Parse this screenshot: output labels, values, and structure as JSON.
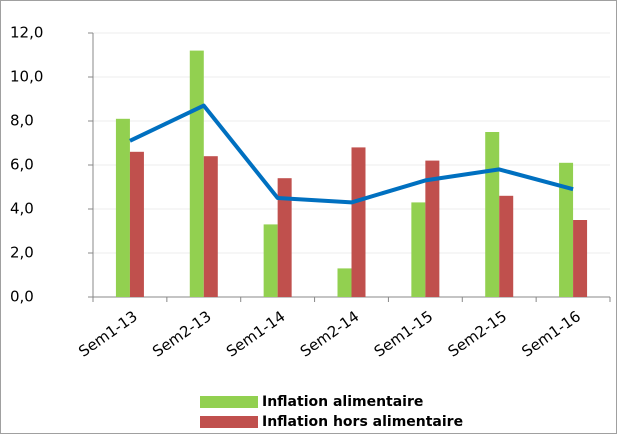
{
  "chart_data": {
    "type": "bar",
    "categories": [
      "Sem1-13",
      "Sem2-13",
      "Sem1-14",
      "Sem2-14",
      "Sem1-15",
      "Sem2-15",
      "Sem1-16"
    ],
    "series": [
      {
        "name": "Inflation alimentaire",
        "color": "#92d050",
        "values": [
          8.1,
          11.2,
          3.3,
          1.3,
          4.3,
          7.5,
          6.1
        ]
      },
      {
        "name": "Inflation hors alimentaire",
        "color": "#c0504d",
        "values": [
          6.6,
          6.4,
          5.4,
          6.8,
          6.2,
          4.6,
          3.5
        ]
      },
      {
        "type": "line",
        "color": "#0070c0",
        "values": [
          7.1,
          8.7,
          4.5,
          4.3,
          5.3,
          5.8,
          4.9
        ]
      }
    ],
    "ylim": [
      0,
      12
    ],
    "yticks": [
      {
        "value": 0,
        "label": "0,0"
      },
      {
        "value": 2,
        "label": "2,0"
      },
      {
        "value": 4,
        "label": "4,0"
      },
      {
        "value": 6,
        "label": "6,0"
      },
      {
        "value": 8,
        "label": "8,0"
      },
      {
        "value": 10,
        "label": "10,0"
      },
      {
        "value": 12,
        "label": "12,0"
      }
    ],
    "grid": true,
    "legend": "bottom"
  }
}
